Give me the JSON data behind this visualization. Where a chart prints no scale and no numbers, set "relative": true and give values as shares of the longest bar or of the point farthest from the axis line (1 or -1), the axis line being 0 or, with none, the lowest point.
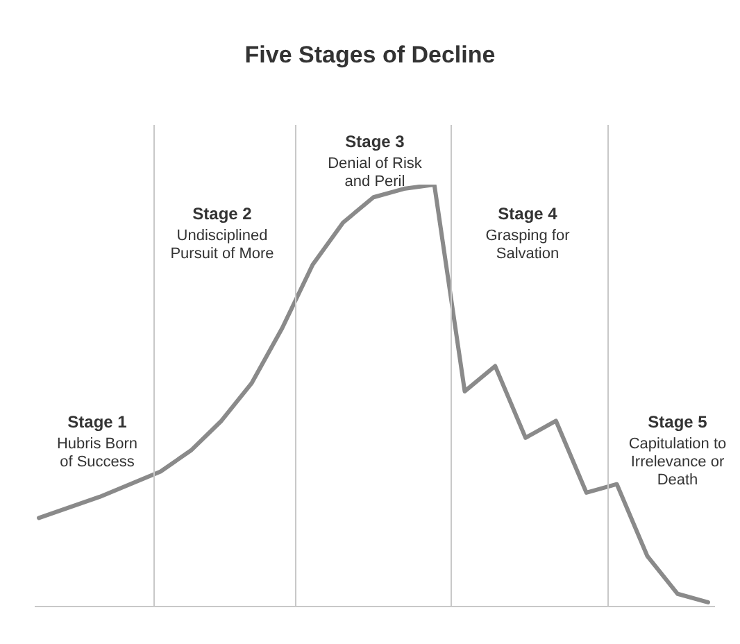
{
  "chart_data": {
    "type": "line",
    "title": "Five Stages of Decline",
    "relative": true,
    "categories": [
      null,
      null,
      null,
      null,
      null,
      null,
      null,
      null,
      null,
      null,
      null,
      null,
      null,
      null,
      null,
      null,
      null,
      null,
      null,
      null,
      null,
      null,
      null
    ],
    "series": [
      {
        "color": "#8a8a8a",
        "values": [
          0.21,
          0.235,
          0.26,
          0.29,
          0.32,
          0.37,
          0.44,
          0.53,
          0.66,
          0.81,
          0.91,
          0.97,
          0.99,
          1.0,
          0.51,
          0.57,
          0.4,
          0.44,
          0.27,
          0.29,
          0.12,
          0.03,
          0.01
        ]
      }
    ],
    "annotations": [
      "Stage 1\nHubris Born\nof Success",
      "Stage 2\nUndisciplined\nPursuit of More",
      "Stage 3\nDenial of Risk\nand Peril",
      "Stage 4\nGrasping for\nSalvation",
      "Stage 5\nCapitulation to\nIrrelevance or\nDeath"
    ],
    "marker": "none",
    "line_style": "solid"
  }
}
